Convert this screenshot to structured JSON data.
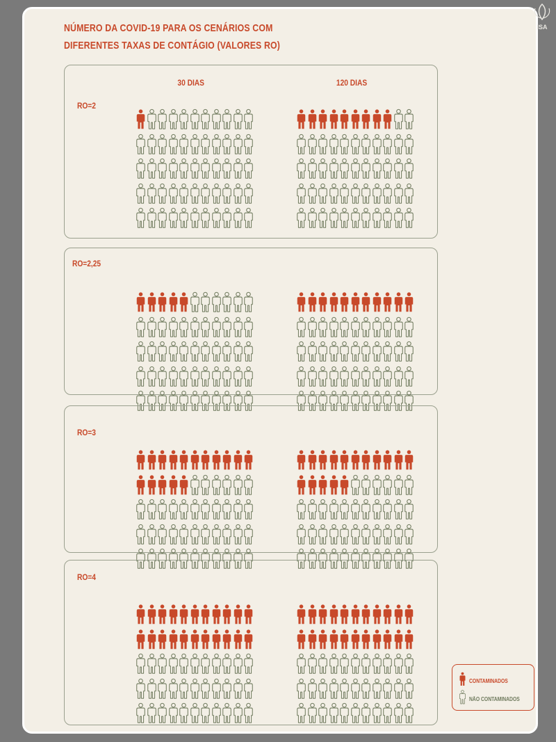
{
  "title_lines": [
    "NÚMERO DA COVID-19 PARA OS CENÁRIOS COM",
    "DIFERENTES TAXAS DE CONTÁGIO (VALORES RO)"
  ],
  "column_labels": [
    "30 DIAS",
    "120 DIAS"
  ],
  "legend": {
    "contaminated_label": "CONTAMINADOS",
    "not_contaminated_label": "NÃO CONTAMINADOS"
  },
  "logo_text": "ISA",
  "colors": {
    "contaminated": "#c8492a",
    "not_contaminated": "#6f7a5d",
    "accent": "#c8492a",
    "background": "#f3efe6"
  },
  "icons": {
    "contaminated": "person-filled-icon",
    "not_contaminated": "person-outline-icon"
  },
  "chart_data": {
    "type": "pictogram",
    "title": "NÚMERO DA COVID-19 PARA OS CENÁRIOS COM DIFERENTES TAXAS DE CONTÁGIO (VALORES RO)",
    "total_per_grid": 55,
    "categories": [
      "30 DIAS",
      "120 DIAS"
    ],
    "scenarios": [
      {
        "label": "RO=2",
        "contaminated": [
          1,
          9
        ]
      },
      {
        "label": "RO=2,25",
        "contaminated": [
          5,
          11
        ]
      },
      {
        "label": "RO=3",
        "contaminated": [
          16,
          16
        ]
      },
      {
        "label": "RO=4",
        "contaminated": [
          22,
          22
        ]
      }
    ]
  }
}
